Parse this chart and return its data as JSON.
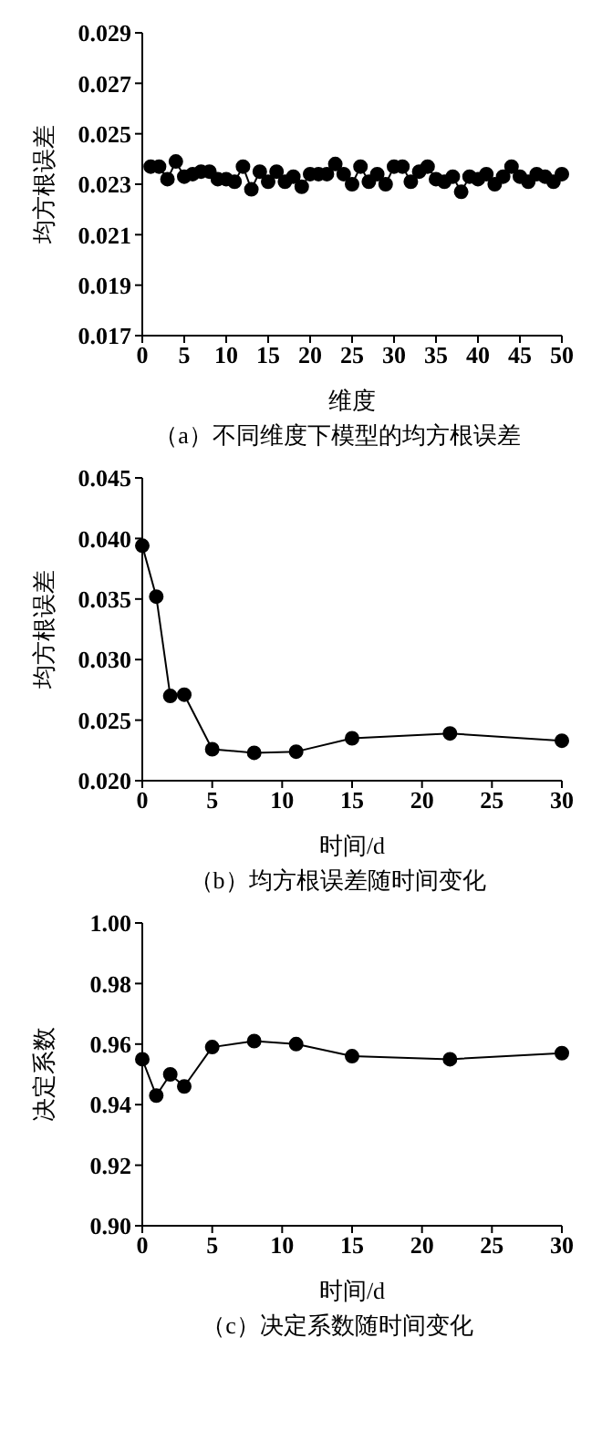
{
  "chart_data": [
    {
      "type": "line",
      "color": "#000000",
      "marker": "circle",
      "grid": false,
      "legend": false,
      "xlabel": "维度",
      "ylabel": "均方根误差",
      "annotations": [
        "（a）不同维度下模型的均方根误差"
      ],
      "x": [
        1,
        2,
        3,
        4,
        5,
        6,
        7,
        8,
        9,
        10,
        11,
        12,
        13,
        14,
        15,
        16,
        17,
        18,
        19,
        20,
        21,
        22,
        23,
        24,
        25,
        26,
        27,
        28,
        29,
        30,
        31,
        32,
        33,
        34,
        35,
        36,
        37,
        38,
        39,
        40,
        41,
        42,
        43,
        44,
        45,
        46,
        47,
        48,
        49,
        50
      ],
      "values": [
        0.0237,
        0.0237,
        0.0232,
        0.0239,
        0.0233,
        0.0234,
        0.0235,
        0.0235,
        0.0232,
        0.0232,
        0.0231,
        0.0237,
        0.0228,
        0.0235,
        0.0231,
        0.0235,
        0.0231,
        0.0233,
        0.0229,
        0.0234,
        0.0234,
        0.0234,
        0.0238,
        0.0234,
        0.023,
        0.0237,
        0.0231,
        0.0234,
        0.023,
        0.0237,
        0.0237,
        0.0231,
        0.0235,
        0.0237,
        0.0232,
        0.0231,
        0.0233,
        0.0227,
        0.0233,
        0.0232,
        0.0234,
        0.023,
        0.0233,
        0.0237,
        0.0233,
        0.0231,
        0.0234,
        0.0233,
        0.0231,
        0.0234
      ],
      "xlim": [
        0,
        50
      ],
      "xticks": [
        0,
        5,
        10,
        15,
        20,
        25,
        30,
        35,
        40,
        45,
        50
      ],
      "ylim": [
        0.017,
        0.029
      ],
      "yticks": [
        0.017,
        0.019,
        0.021,
        0.023,
        0.025,
        0.027,
        0.029
      ]
    },
    {
      "type": "line",
      "color": "#000000",
      "marker": "circle",
      "grid": false,
      "legend": false,
      "xlabel": "时间/d",
      "ylabel": "均方根误差",
      "annotations": [
        "（b）均方根误差随时间变化"
      ],
      "x": [
        0,
        1,
        2,
        3,
        5,
        8,
        11,
        15,
        22,
        30
      ],
      "values": [
        0.0394,
        0.0352,
        0.027,
        0.0271,
        0.0226,
        0.0223,
        0.0224,
        0.0235,
        0.0239,
        0.0233
      ],
      "xlim": [
        0,
        30
      ],
      "xticks": [
        0,
        5,
        10,
        15,
        20,
        25,
        30
      ],
      "ylim": [
        0.02,
        0.045
      ],
      "yticks": [
        {
          "value": 0.02,
          "label": "0.020"
        },
        0.025,
        {
          "value": 0.03,
          "label": "0.030"
        },
        0.035,
        {
          "value": 0.04,
          "label": "0.040"
        },
        0.045
      ]
    },
    {
      "type": "line",
      "color": "#000000",
      "marker": "circle",
      "grid": false,
      "legend": false,
      "xlabel": "时间/d",
      "ylabel": "决定系数",
      "annotations": [
        "（c）决定系数随时间变化"
      ],
      "x": [
        0,
        1,
        2,
        3,
        5,
        8,
        11,
        15,
        22,
        30
      ],
      "values": [
        0.955,
        0.943,
        0.95,
        0.946,
        0.959,
        0.961,
        0.96,
        0.956,
        0.955,
        0.957
      ],
      "xlim": [
        0,
        30
      ],
      "xticks": [
        0,
        5,
        10,
        15,
        20,
        25,
        30
      ],
      "ylim": [
        0.9,
        1.0
      ],
      "yticks": [
        {
          "value": 0.9,
          "label": "0.90"
        },
        0.92,
        0.94,
        0.96,
        0.98,
        {
          "value": 1.0,
          "label": "1.00"
        }
      ]
    }
  ]
}
